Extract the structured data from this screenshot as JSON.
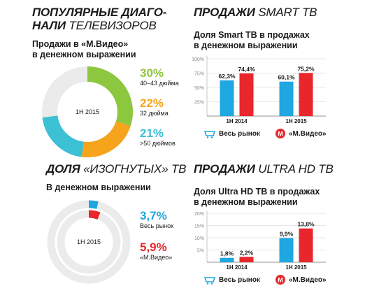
{
  "panel1": {
    "title_bold": "ПОПУЛЯРНЫЕ ДИАГО-",
    "title_bold2": "НАЛИ",
    "title_thin": "ТЕЛЕВИЗОРОВ",
    "subtitle_1": "Продажи в «М.Видео»",
    "subtitle_2": "в денежном выражении",
    "center_label": "1H 2015",
    "colors": {
      "green": "#8dc63f",
      "orange": "#f7a41d",
      "teal": "#3cc0d3",
      "track": "#ebebeb"
    }
  },
  "panel2": {
    "title_bold": "ПРОДАЖИ",
    "title_thin": "SMART ТВ",
    "subtitle_1": "Доля Smart ТВ в продажах",
    "subtitle_2": "в денежном выражении"
  },
  "panel3": {
    "title_bold": "ДОЛЯ",
    "title_thin": "«ИЗОГНУТЫХ» ТВ",
    "subtitle_1": "В денежном выражении",
    "center_label": "1H 2015"
  },
  "panel4": {
    "title_bold": "ПРОДАЖИ",
    "title_thin": "ULTRA HD ТВ",
    "subtitle_1": "Доля Ultra HD ТВ в продажах",
    "subtitle_2": "в денежном выражении"
  },
  "legend": {
    "market": "Весь рынок",
    "mvideo": "«М.Видео»",
    "market_color": "#1ea7e1",
    "mvideo_color": "#e8262b"
  },
  "chart_data": [
    {
      "type": "pie",
      "categories": [
        "40–43 дюйма",
        "32 дюйма",
        ">50 дюймов"
      ],
      "values": [
        30,
        22,
        21
      ],
      "labels": [
        "30%",
        "22%",
        "21%"
      ]
    },
    {
      "type": "bar",
      "categories": [
        "1H 2014",
        "1H 2015"
      ],
      "ylim": [
        0,
        100
      ],
      "yticks": [
        "25%",
        "50%",
        "75%",
        "100%"
      ],
      "ytick_values": [
        25,
        50,
        75,
        100
      ],
      "series": [
        {
          "name": "Весь рынок",
          "values": [
            62.3,
            60.1
          ],
          "labels": [
            "62,3%",
            "60,1%"
          ]
        },
        {
          "name": "«М.Видео»",
          "values": [
            74.4,
            75.2
          ],
          "labels": [
            "74,4%",
            "75,2%"
          ]
        }
      ]
    },
    {
      "type": "pie",
      "categories": [
        "Весь рынок",
        "«М.Видео»"
      ],
      "values": [
        3.7,
        5.9
      ],
      "labels": [
        "3,7%",
        "5,9%"
      ]
    },
    {
      "type": "bar",
      "categories": [
        "1H 2014",
        "1H 2015"
      ],
      "ylim": [
        0,
        20
      ],
      "yticks": [
        "5%",
        "10%",
        "15%",
        "20%"
      ],
      "ytick_values": [
        5,
        10,
        15,
        20
      ],
      "series": [
        {
          "name": "Весь рынок",
          "values": [
            1.8,
            9.9
          ],
          "labels": [
            "1,8%",
            "9,9%"
          ]
        },
        {
          "name": "«М.Видео»",
          "values": [
            2.2,
            13.8
          ],
          "labels": [
            "2,2%",
            "13,8%"
          ]
        }
      ]
    }
  ]
}
